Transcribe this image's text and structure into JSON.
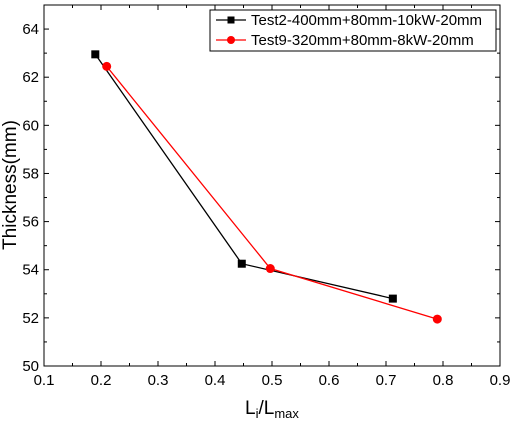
{
  "chart_data": {
    "type": "line",
    "xlabel_main": "L",
    "xlabel_sub1": "i",
    "xlabel_slash": "/L",
    "xlabel_sub2": "max",
    "ylabel": "Thickness(mm)",
    "xlim": [
      0.1,
      0.9
    ],
    "ylim": [
      50,
      65
    ],
    "xticks": [
      0.1,
      0.2,
      0.3,
      0.4,
      0.5,
      0.6,
      0.7,
      0.8,
      0.9
    ],
    "yticks": [
      50,
      52,
      54,
      56,
      58,
      60,
      62,
      64
    ],
    "grid": false,
    "legend_position": "top-right",
    "series": [
      {
        "name": "Test2-400mm+80mm-10kW-20mm",
        "color": "#000000",
        "marker": "square",
        "x": [
          0.19,
          0.447,
          0.712
        ],
        "y": [
          62.95,
          54.25,
          52.8
        ]
      },
      {
        "name": "Test9-320mm+80mm-8kW-20mm",
        "color": "#ff0000",
        "marker": "circle",
        "x": [
          0.21,
          0.497,
          0.79
        ],
        "y": [
          62.45,
          54.05,
          51.95
        ]
      }
    ]
  }
}
